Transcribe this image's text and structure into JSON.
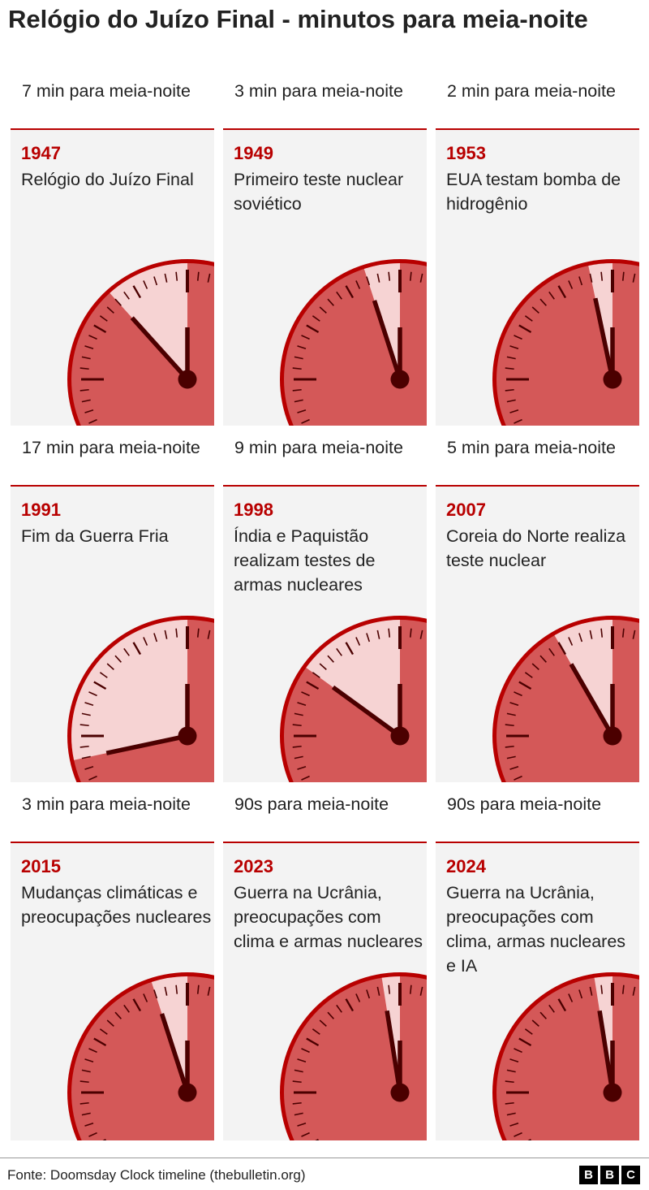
{
  "title": "Relógio do Juízo Final - minutos para meia-noite",
  "colors": {
    "accent": "#b80000",
    "clock_rim": "#b80000",
    "clock_face": "#d45858",
    "clock_sector": "#f6d3d3",
    "hand": "#4b0000",
    "panel_bg": "#f3f3f3"
  },
  "cells": [
    {
      "label": "7 min para meia-noite",
      "year": "1947",
      "event": "Relógio do Juízo Final",
      "seconds_to_midnight": 420
    },
    {
      "label": "3 min para meia-noite",
      "year": "1949",
      "event": "Primeiro teste nuclear soviético",
      "seconds_to_midnight": 180
    },
    {
      "label": "2 min para meia-noite",
      "year": "1953",
      "event": "EUA testam bomba de hidrogênio",
      "seconds_to_midnight": 120
    },
    {
      "label": "17 min para meia-noite",
      "year": "1991",
      "event": "Fim da Guerra Fria",
      "seconds_to_midnight": 1020
    },
    {
      "label": "9 min para meia-noite",
      "year": "1998",
      "event": "Índia e Paquistão realizam testes de armas nucleares",
      "seconds_to_midnight": 540
    },
    {
      "label": "5 min para meia-noite",
      "year": "2007",
      "event": "Coreia do Norte realiza teste nuclear",
      "seconds_to_midnight": 300
    },
    {
      "label": "3 min para meia-noite",
      "year": "2015",
      "event": "Mudanças climáticas e preocupações nucleares",
      "seconds_to_midnight": 180
    },
    {
      "label": "90s para meia-noite",
      "year": "2023",
      "event": "Guerra na Ucrânia, preocupações com clima e armas nucleares",
      "seconds_to_midnight": 90
    },
    {
      "label": "90s para meia-noite",
      "year": "2024",
      "event": "Guerra na Ucrânia, preocupações com clima, armas nucleares e IA",
      "seconds_to_midnight": 90
    }
  ],
  "footer": {
    "source": "Fonte: Doomsday Clock timeline (thebulletin.org)",
    "logo_letters": [
      "B",
      "B",
      "C"
    ]
  }
}
